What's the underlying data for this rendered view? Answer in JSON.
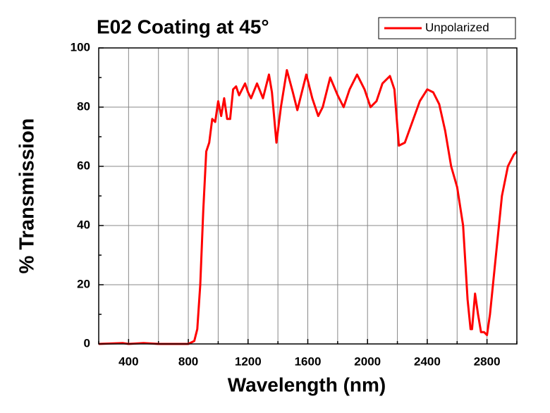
{
  "chart_data": {
    "type": "line",
    "title": "E02 Coating at 45°",
    "x_label": "Wavelength (nm)",
    "y_label": "% Transmission",
    "xlim": [
      200,
      3000
    ],
    "ylim": [
      0,
      100
    ],
    "xticks": [
      400,
      800,
      1200,
      1600,
      2000,
      2400,
      2800
    ],
    "x_minor_ticks": [
      200,
      600,
      1000,
      1400,
      1800,
      2200,
      2600,
      3000
    ],
    "yticks": [
      0,
      20,
      40,
      60,
      80,
      100
    ],
    "y_minor_ticks": [
      10,
      30,
      50,
      70,
      90
    ],
    "grid": true,
    "legend": "upper right",
    "x": [
      200,
      360,
      400,
      500,
      600,
      800,
      840,
      860,
      880,
      900,
      920,
      940,
      960,
      980,
      1000,
      1020,
      1040,
      1060,
      1080,
      1100,
      1120,
      1140,
      1180,
      1200,
      1220,
      1260,
      1300,
      1340,
      1360,
      1390,
      1420,
      1460,
      1500,
      1530,
      1560,
      1590,
      1630,
      1670,
      1700,
      1750,
      1800,
      1840,
      1880,
      1930,
      1980,
      2020,
      2060,
      2100,
      2150,
      2180,
      2210,
      2250,
      2300,
      2350,
      2400,
      2440,
      2480,
      2520,
      2560,
      2600,
      2640,
      2670,
      2690,
      2700,
      2720,
      2740,
      2760,
      2780,
      2800,
      2820,
      2860,
      2900,
      2940,
      2980,
      3000
    ],
    "series": [
      {
        "name": "Unpolarized",
        "color": "#ff0000",
        "values": [
          0,
          0.3,
          0,
          0.3,
          0,
          0,
          1,
          5,
          20,
          45,
          65,
          68,
          76,
          75,
          82,
          77,
          83,
          76,
          76,
          86,
          87,
          84,
          88,
          85,
          83,
          88,
          83,
          91,
          85,
          68,
          80,
          92.5,
          85,
          79,
          85,
          91,
          83,
          77,
          80,
          90,
          84,
          80,
          86,
          91,
          86,
          80,
          82,
          88,
          90.5,
          86,
          67,
          68,
          75,
          82,
          86,
          85,
          81,
          72,
          60,
          53,
          40,
          15,
          5,
          5,
          17,
          10,
          4,
          4,
          3,
          10,
          30,
          50,
          60,
          64,
          65
        ]
      }
    ]
  }
}
